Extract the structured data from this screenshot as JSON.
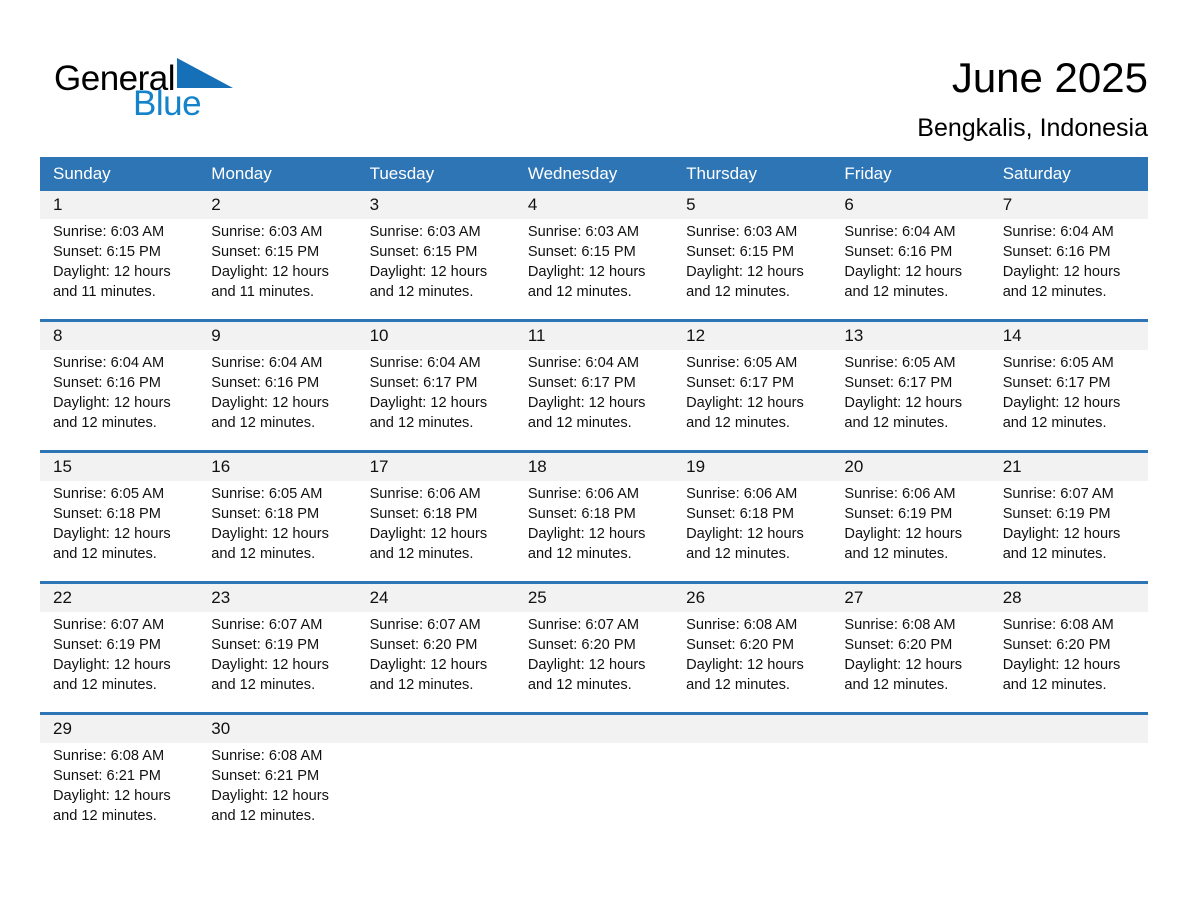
{
  "logo": {
    "part1": "General",
    "part2": "Blue"
  },
  "header": {
    "title": "June 2025",
    "subtitle": "Bengkalis, Indonesia"
  },
  "colors": {
    "header_bar_bg": "#2E75B6",
    "week_divider": "#2E75B6",
    "day_strip_bg": "#F2F2F2",
    "logo_blue_text": "#1583C9",
    "logo_triangle": "#1670B8",
    "header_text": "#FFFFFF",
    "body_text": "#111111"
  },
  "icons": {
    "logo_triangle": "triangle-flag"
  },
  "calendar": {
    "day_headers": [
      "Sunday",
      "Monday",
      "Tuesday",
      "Wednesday",
      "Thursday",
      "Friday",
      "Saturday"
    ],
    "weeks": [
      [
        {
          "day": "1",
          "lines": [
            "Sunrise: 6:03 AM",
            "Sunset: 6:15 PM",
            "Daylight: 12 hours",
            "and 11 minutes."
          ]
        },
        {
          "day": "2",
          "lines": [
            "Sunrise: 6:03 AM",
            "Sunset: 6:15 PM",
            "Daylight: 12 hours",
            "and 11 minutes."
          ]
        },
        {
          "day": "3",
          "lines": [
            "Sunrise: 6:03 AM",
            "Sunset: 6:15 PM",
            "Daylight: 12 hours",
            "and 12 minutes."
          ]
        },
        {
          "day": "4",
          "lines": [
            "Sunrise: 6:03 AM",
            "Sunset: 6:15 PM",
            "Daylight: 12 hours",
            "and 12 minutes."
          ]
        },
        {
          "day": "5",
          "lines": [
            "Sunrise: 6:03 AM",
            "Sunset: 6:15 PM",
            "Daylight: 12 hours",
            "and 12 minutes."
          ]
        },
        {
          "day": "6",
          "lines": [
            "Sunrise: 6:04 AM",
            "Sunset: 6:16 PM",
            "Daylight: 12 hours",
            "and 12 minutes."
          ]
        },
        {
          "day": "7",
          "lines": [
            "Sunrise: 6:04 AM",
            "Sunset: 6:16 PM",
            "Daylight: 12 hours",
            "and 12 minutes."
          ]
        }
      ],
      [
        {
          "day": "8",
          "lines": [
            "Sunrise: 6:04 AM",
            "Sunset: 6:16 PM",
            "Daylight: 12 hours",
            "and 12 minutes."
          ]
        },
        {
          "day": "9",
          "lines": [
            "Sunrise: 6:04 AM",
            "Sunset: 6:16 PM",
            "Daylight: 12 hours",
            "and 12 minutes."
          ]
        },
        {
          "day": "10",
          "lines": [
            "Sunrise: 6:04 AM",
            "Sunset: 6:17 PM",
            "Daylight: 12 hours",
            "and 12 minutes."
          ]
        },
        {
          "day": "11",
          "lines": [
            "Sunrise: 6:04 AM",
            "Sunset: 6:17 PM",
            "Daylight: 12 hours",
            "and 12 minutes."
          ]
        },
        {
          "day": "12",
          "lines": [
            "Sunrise: 6:05 AM",
            "Sunset: 6:17 PM",
            "Daylight: 12 hours",
            "and 12 minutes."
          ]
        },
        {
          "day": "13",
          "lines": [
            "Sunrise: 6:05 AM",
            "Sunset: 6:17 PM",
            "Daylight: 12 hours",
            "and 12 minutes."
          ]
        },
        {
          "day": "14",
          "lines": [
            "Sunrise: 6:05 AM",
            "Sunset: 6:17 PM",
            "Daylight: 12 hours",
            "and 12 minutes."
          ]
        }
      ],
      [
        {
          "day": "15",
          "lines": [
            "Sunrise: 6:05 AM",
            "Sunset: 6:18 PM",
            "Daylight: 12 hours",
            "and 12 minutes."
          ]
        },
        {
          "day": "16",
          "lines": [
            "Sunrise: 6:05 AM",
            "Sunset: 6:18 PM",
            "Daylight: 12 hours",
            "and 12 minutes."
          ]
        },
        {
          "day": "17",
          "lines": [
            "Sunrise: 6:06 AM",
            "Sunset: 6:18 PM",
            "Daylight: 12 hours",
            "and 12 minutes."
          ]
        },
        {
          "day": "18",
          "lines": [
            "Sunrise: 6:06 AM",
            "Sunset: 6:18 PM",
            "Daylight: 12 hours",
            "and 12 minutes."
          ]
        },
        {
          "day": "19",
          "lines": [
            "Sunrise: 6:06 AM",
            "Sunset: 6:18 PM",
            "Daylight: 12 hours",
            "and 12 minutes."
          ]
        },
        {
          "day": "20",
          "lines": [
            "Sunrise: 6:06 AM",
            "Sunset: 6:19 PM",
            "Daylight: 12 hours",
            "and 12 minutes."
          ]
        },
        {
          "day": "21",
          "lines": [
            "Sunrise: 6:07 AM",
            "Sunset: 6:19 PM",
            "Daylight: 12 hours",
            "and 12 minutes."
          ]
        }
      ],
      [
        {
          "day": "22",
          "lines": [
            "Sunrise: 6:07 AM",
            "Sunset: 6:19 PM",
            "Daylight: 12 hours",
            "and 12 minutes."
          ]
        },
        {
          "day": "23",
          "lines": [
            "Sunrise: 6:07 AM",
            "Sunset: 6:19 PM",
            "Daylight: 12 hours",
            "and 12 minutes."
          ]
        },
        {
          "day": "24",
          "lines": [
            "Sunrise: 6:07 AM",
            "Sunset: 6:20 PM",
            "Daylight: 12 hours",
            "and 12 minutes."
          ]
        },
        {
          "day": "25",
          "lines": [
            "Sunrise: 6:07 AM",
            "Sunset: 6:20 PM",
            "Daylight: 12 hours",
            "and 12 minutes."
          ]
        },
        {
          "day": "26",
          "lines": [
            "Sunrise: 6:08 AM",
            "Sunset: 6:20 PM",
            "Daylight: 12 hours",
            "and 12 minutes."
          ]
        },
        {
          "day": "27",
          "lines": [
            "Sunrise: 6:08 AM",
            "Sunset: 6:20 PM",
            "Daylight: 12 hours",
            "and 12 minutes."
          ]
        },
        {
          "day": "28",
          "lines": [
            "Sunrise: 6:08 AM",
            "Sunset: 6:20 PM",
            "Daylight: 12 hours",
            "and 12 minutes."
          ]
        }
      ],
      [
        {
          "day": "29",
          "lines": [
            "Sunrise: 6:08 AM",
            "Sunset: 6:21 PM",
            "Daylight: 12 hours",
            "and 12 minutes."
          ]
        },
        {
          "day": "30",
          "lines": [
            "Sunrise: 6:08 AM",
            "Sunset: 6:21 PM",
            "Daylight: 12 hours",
            "and 12 minutes."
          ]
        },
        null,
        null,
        null,
        null,
        null
      ]
    ]
  }
}
